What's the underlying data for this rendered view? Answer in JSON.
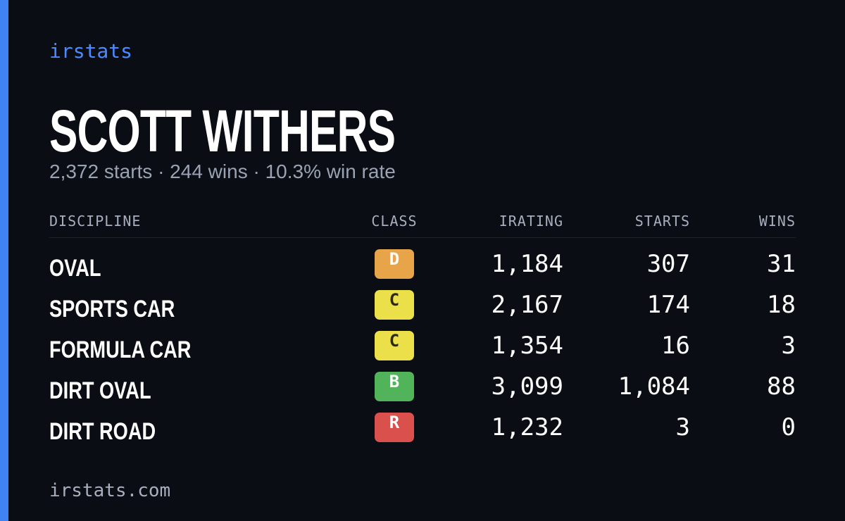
{
  "brand": "irstats",
  "header": {
    "name": "SCOTT WITHERS",
    "summary": "2,372 starts · 244 wins · 10.3% win rate"
  },
  "table": {
    "columns": [
      "DISCIPLINE",
      "CLASS",
      "IRATING",
      "STARTS",
      "WINS"
    ],
    "rows": [
      [
        "OVAL",
        "D",
        "1,184",
        "307",
        "31"
      ],
      [
        "SPORTS CAR",
        "C",
        "2,167",
        "174",
        "18"
      ],
      [
        "FORMULA CAR",
        "C",
        "1,354",
        "16",
        "3"
      ],
      [
        "DIRT OVAL",
        "B",
        "3,099",
        "1,084",
        "88"
      ],
      [
        "DIRT ROAD",
        "R",
        "1,232",
        "3",
        "0"
      ]
    ],
    "class_colors": {
      "D": {
        "bg": "#e8a448",
        "fg": "#ffffff"
      },
      "C": {
        "bg": "#ece04a",
        "fg": "#2a2a1a"
      },
      "B": {
        "bg": "#52b45a",
        "fg": "#ffffff"
      },
      "R": {
        "bg": "#d9504c",
        "fg": "#ffffff"
      }
    }
  },
  "footer": "irstats.com"
}
